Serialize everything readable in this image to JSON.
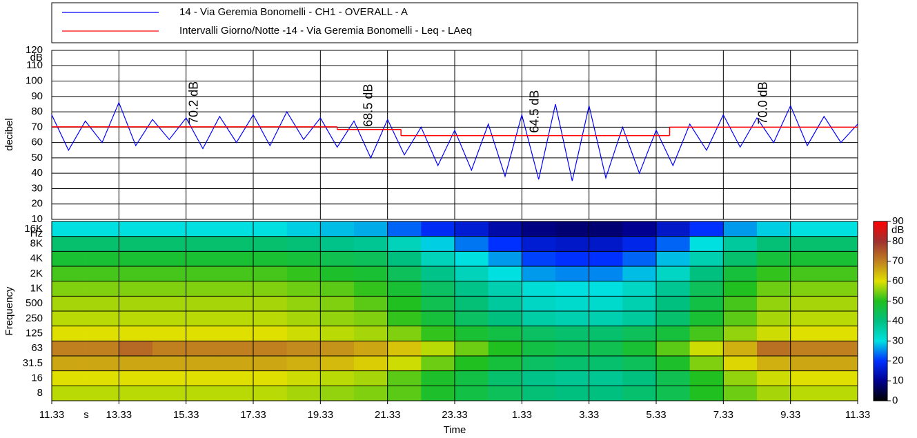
{
  "chart_data": [
    {
      "type": "line",
      "ylabel": "decibel",
      "y_unit": "dB",
      "ylim": [
        10,
        120
      ],
      "yticks": [
        10,
        20,
        30,
        40,
        50,
        60,
        70,
        80,
        90,
        100,
        110,
        120
      ],
      "grid": true,
      "series": [
        {
          "name": "14 - Via Geremia Bonomelli - CH1 - OVERALL - A",
          "color": "#0000ff",
          "x": [
            0,
            0.5,
            1,
            1.5,
            2,
            2.5,
            3,
            3.5,
            4,
            4.5,
            5,
            5.5,
            6,
            6.5,
            7,
            7.5,
            8,
            8.5,
            9,
            9.5,
            10,
            10.5,
            11,
            11.5,
            12,
            12.5,
            13,
            13.5,
            14,
            14.5,
            15,
            15.5,
            16,
            16.5,
            17,
            17.5,
            18,
            18.5,
            19,
            19.5,
            20,
            20.5,
            21,
            21.5,
            22,
            22.5,
            23,
            23.5,
            24
          ],
          "values": [
            78,
            55,
            74,
            60,
            86,
            58,
            75,
            62,
            76,
            56,
            77,
            60,
            78,
            58,
            80,
            62,
            76,
            57,
            74,
            50,
            75,
            52,
            70,
            45,
            68,
            42,
            72,
            38,
            78,
            36,
            85,
            35,
            84,
            37,
            70,
            40,
            68,
            45,
            72,
            55,
            78,
            57,
            76,
            60,
            84,
            58,
            77,
            60,
            72
          ]
        },
        {
          "name": "Intervalli Giorno/Notte -14 - Via Geremia Bonomelli - Leq - LAeq",
          "color": "#ff0000",
          "step": true,
          "x": [
            0,
            8.5,
            10.4,
            18.4
          ],
          "values": [
            70.2,
            68.5,
            64.5,
            70.0
          ],
          "value_labels": [
            "70.2 dB",
            "68.5 dB",
            "64.5 dB",
            "70.0 dB"
          ]
        }
      ]
    },
    {
      "type": "heatmap",
      "xlabel": "Time",
      "x_unit": "s",
      "ylabel": "Frequency",
      "y_unit": "Hz",
      "xlim": [
        0,
        24
      ],
      "xticks": [
        {
          "value": 0,
          "label": "11.33"
        },
        {
          "value": 2,
          "label": "13.33"
        },
        {
          "value": 4,
          "label": "15.33"
        },
        {
          "value": 6,
          "label": "17.33"
        },
        {
          "value": 8,
          "label": "19.33"
        },
        {
          "value": 10,
          "label": "21.33"
        },
        {
          "value": 12,
          "label": "23.33"
        },
        {
          "value": 14,
          "label": "1.33"
        },
        {
          "value": 16,
          "label": "3.33"
        },
        {
          "value": 18,
          "label": "5.33"
        },
        {
          "value": 20,
          "label": "7.33"
        },
        {
          "value": 22,
          "label": "9.33"
        },
        {
          "value": 24,
          "label": "11.33"
        }
      ],
      "x_bins": [
        0,
        1,
        2,
        3,
        4,
        5,
        6,
        7,
        8,
        9,
        10,
        11,
        12,
        13,
        14,
        15,
        16,
        17,
        18,
        19,
        20,
        21,
        22,
        23,
        24
      ],
      "categories": [
        "8",
        "16",
        "31.5",
        "63",
        "125",
        "250",
        "500",
        "1K",
        "2K",
        "4K",
        "8K",
        "16K"
      ],
      "z": [
        [
          58,
          58,
          58,
          58,
          58,
          58,
          58,
          57,
          56,
          55,
          53,
          49,
          46,
          44,
          41,
          40,
          40,
          42,
          45,
          50,
          54,
          57,
          58,
          58
        ],
        [
          60,
          60,
          60,
          60,
          60,
          60,
          60,
          59,
          58,
          57,
          53,
          49,
          46,
          42,
          39,
          38,
          38,
          40,
          45,
          50,
          56,
          59,
          60,
          60
        ],
        [
          66,
          66,
          66,
          66,
          66,
          66,
          66,
          65,
          64,
          62,
          59,
          54,
          50,
          47,
          43,
          42,
          42,
          44,
          49,
          55,
          61,
          65,
          66,
          66
        ],
        [
          70,
          70,
          73,
          70,
          70,
          70,
          70,
          69,
          68,
          66,
          63,
          58,
          54,
          50,
          46,
          45,
          45,
          48,
          53,
          59,
          65,
          72,
          70,
          70
        ],
        [
          60,
          60,
          60,
          60,
          60,
          60,
          60,
          59,
          58,
          57,
          55,
          51,
          48,
          46,
          43,
          42,
          42,
          44,
          47,
          52,
          56,
          59,
          60,
          60
        ],
        [
          58,
          58,
          58,
          58,
          58,
          58,
          58,
          57,
          56,
          55,
          51,
          47,
          43,
          40,
          36,
          35,
          35,
          37,
          42,
          48,
          53,
          57,
          58,
          58
        ],
        [
          57,
          57,
          57,
          57,
          57,
          57,
          57,
          56,
          55,
          53,
          50,
          45,
          41,
          37,
          33,
          32,
          32,
          35,
          40,
          46,
          52,
          56,
          57,
          57
        ],
        [
          55,
          55,
          55,
          55,
          55,
          55,
          55,
          54,
          53,
          51,
          48,
          43,
          39,
          35,
          31,
          30,
          30,
          33,
          38,
          44,
          50,
          54,
          55,
          55
        ],
        [
          52,
          52,
          52,
          52,
          52,
          52,
          52,
          51,
          49,
          48,
          44,
          39,
          34,
          30,
          26,
          25,
          25,
          28,
          33,
          40,
          47,
          51,
          52,
          52
        ],
        [
          48,
          48,
          48,
          48,
          48,
          48,
          48,
          47,
          45,
          44,
          40,
          34,
          30,
          26,
          21,
          20,
          20,
          23,
          28,
          35,
          42,
          47,
          48,
          48
        ],
        [
          42,
          42,
          42,
          42,
          42,
          42,
          42,
          41,
          39,
          38,
          34,
          29,
          24,
          20,
          16,
          15,
          15,
          18,
          23,
          30,
          37,
          41,
          42,
          42
        ],
        [
          30,
          30,
          30,
          30,
          30,
          30,
          30,
          29,
          28,
          27,
          23,
          19,
          16,
          12,
          9,
          8,
          8,
          10,
          15,
          20,
          26,
          29,
          30,
          30
        ]
      ],
      "colorbar": {
        "label": "dB",
        "zlim": [
          0,
          90
        ],
        "ticks": [
          0,
          10,
          20,
          30,
          40,
          50,
          60,
          70,
          80,
          90
        ],
        "colors": [
          "#000000",
          "#000090",
          "#0030ff",
          "#00e0e0",
          "#00c080",
          "#20c020",
          "#e0e000",
          "#c08020",
          "#a03030",
          "#ff0000"
        ]
      }
    }
  ]
}
